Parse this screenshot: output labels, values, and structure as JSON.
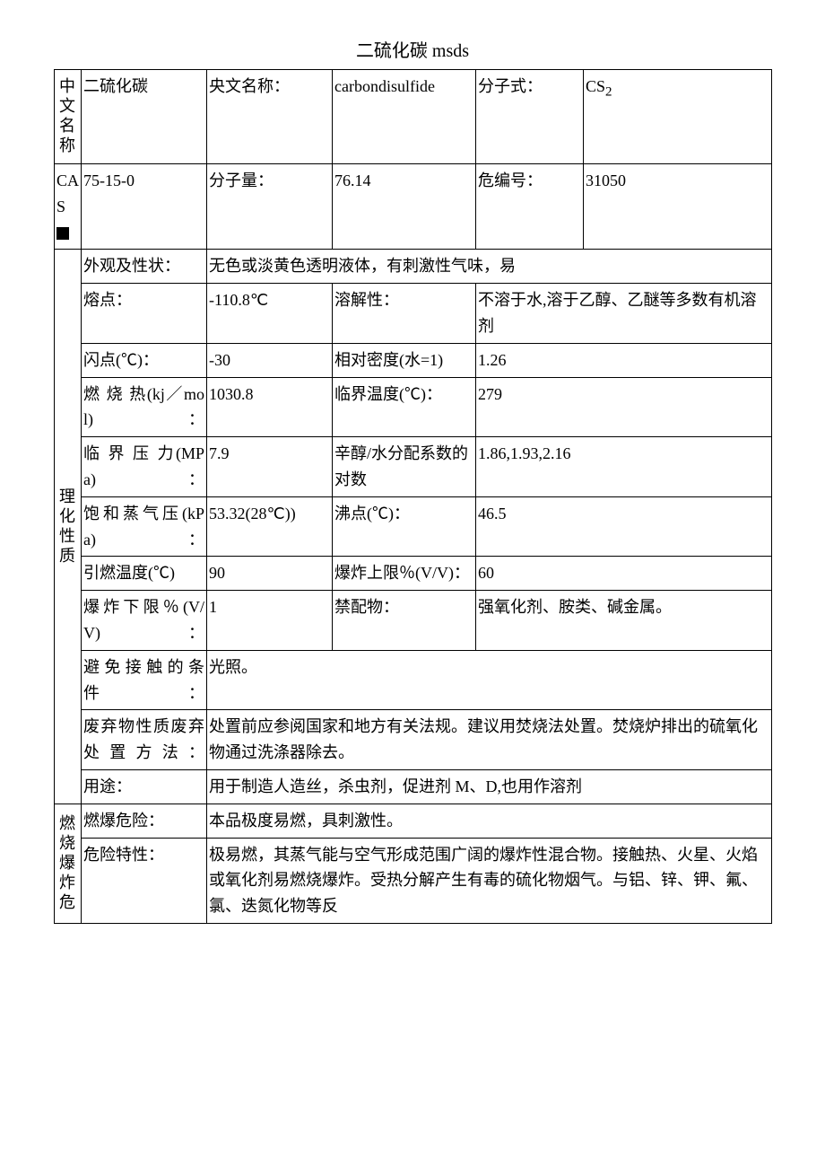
{
  "title": "二硫化碳 msds",
  "row1": {
    "vlabel": "中文名称",
    "name_cn": "二硫化碳",
    "name_en_label": "央文名称：",
    "name_en": "carbondisulfide",
    "formula_label": "分子式：",
    "formula_html": "CS<sub>2</sub>"
  },
  "row2": {
    "cas_label": "CAS",
    "cas": "75-15-0",
    "mw_label": "分子量：",
    "mw": "76.14",
    "hazno_label": "危编号：",
    "hazno": "31050"
  },
  "phys": {
    "vlabel": "理化性质",
    "appearance_label": "外观及性状：",
    "appearance": "无色或淡黄色透明液体，有刺激性气味，易",
    "mp_label": "熔点：",
    "mp": "-110.8℃",
    "sol_label": "溶解性：",
    "sol": "不溶于水,溶于乙醇、乙醚等多数有机溶剂",
    "fp_label": "闪点(℃)：",
    "fp": "-30",
    "rd_label": "相对密度(水=1)",
    "rd": "1.26",
    "heat_label": "燃 烧 热(kj／mol)：",
    "heat": "1030.8",
    "tc_label": "临界温度(℃)：",
    "tc": "279",
    "pc_label": "临 界 压 力(MPa)：",
    "pc": "7.9",
    "logp_label": "辛醇/水分配系数的对数",
    "logp": "1.86,1.93,2.16",
    "vp_label": "饱和蒸气压(kPa)：",
    "vp": "53.32(28℃))",
    "bp_label": "沸点(℃)：",
    "bp": "46.5",
    "ig_label": "引燃温度(℃)",
    "ig": "90",
    "uel_label": "爆炸上限％(V/V)：",
    "uel": "60",
    "lel_label": "爆炸下限％(V/V)：",
    "lel": "1",
    "incomp_label": "禁配物：",
    "incomp": "强氧化剂、胺类、碱金属。",
    "avoid_label": "避免接触的条件：",
    "avoid": "光照。",
    "disposal_label": "废弃物性质废弃处置方法：",
    "disposal": "处置前应参阅国家和地方有关法规。建议用焚烧法处置。焚烧炉排出的硫氧化物通过洗涤器除去。",
    "use_label": "用途：",
    "use": "用于制造人造丝，杀虫剂，促进剂 M、D,也用作溶剂"
  },
  "fire": {
    "vlabel": "燃烧爆炸危",
    "haz_label": "燃爆危险：",
    "haz": "本品极度易燃，具刺激性。",
    "char_label": "危险特性：",
    "char": "极易燃，其蒸气能与空气形成范围广阔的爆炸性混合物。接触热、火星、火焰或氧化剂易燃烧爆炸。受热分解产生有毒的硫化物烟气。与铝、锌、钾、氟、氯、迭氮化物等反"
  }
}
